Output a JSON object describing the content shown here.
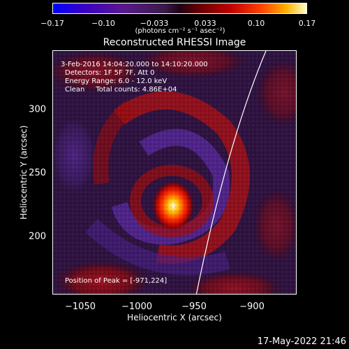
{
  "colorbar": {
    "ticks": [
      "−0.17",
      "−0.10",
      "−0.033",
      "0.033",
      "0.10",
      "0.17"
    ],
    "unit": "(photons cm⁻² s⁻¹ asec⁻²)",
    "colors": [
      "#0000ff",
      "#5a1a8a",
      "#220018",
      "#c00000",
      "#ffb000",
      "#ffffc8"
    ]
  },
  "title": "Reconstructed RHESSI Image",
  "info": {
    "line1": "3-Feb-2016 14:04:20.000 to 14:10:20.000",
    "line2": "Detectors: 1F 5F 7F, Att 0",
    "line3": "Energy Range: 6.0 - 12.0 keV",
    "line4": "Clean     Total counts: 4.86E+04",
    "peak": "Position of Peak = [-971,224]"
  },
  "axes": {
    "xlabel": "Heliocentric X (arcsec)",
    "ylabel": "Heliocentric Y (arcsec)",
    "xticks": [
      "−1050",
      "−1000",
      "−950",
      "−900"
    ],
    "yticks": [
      "300",
      "250",
      "200"
    ]
  },
  "peak_position": [
    -971,
    224
  ],
  "timestamp": "17-May-2022 21:46"
}
